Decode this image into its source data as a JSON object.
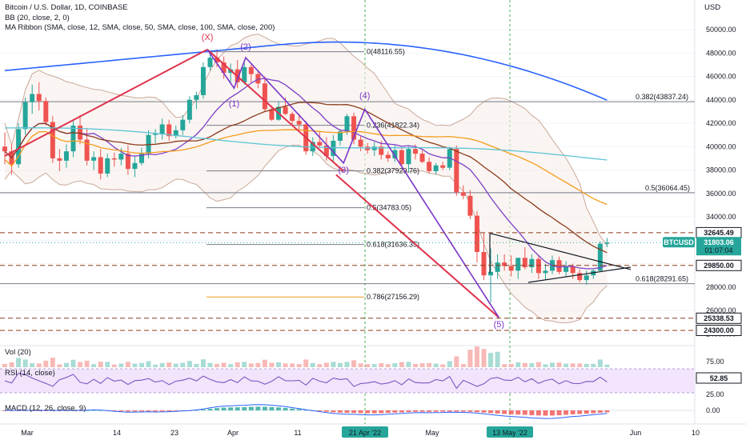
{
  "title": "Bitcoin / U.S. Dollar, 1D, COINBASE",
  "indicators": {
    "bb": "BB (20, close, 2, 0)",
    "ma_ribbon": "MA Ribbon (SMA, close, 12, SMA, close, 50, SMA, close, 100, SMA, close, 200)",
    "vol": "Vol (20)",
    "rsi": "RSI (14, close)",
    "macd": "MACD (12, 26, close, 9)"
  },
  "currency": "USD",
  "colors": {
    "up": "#26a69a",
    "down": "#ef5350",
    "bb": "#c9a99a",
    "ma12": "#7e3fc7",
    "ma50": "#8b3a1a",
    "ma100": "#f59b1b",
    "ma200_cyan": "#5ec4d6",
    "ma200": "#2962ff",
    "wave_red": "#e0334c",
    "wave_purple": "#7b35c8",
    "rsi_band": "#f1e4fb",
    "rsi_line": "#7e57c2"
  },
  "chart_data": {
    "type": "candlestick",
    "ylim": [
      23000,
      51300
    ],
    "y_ticks": [
      24000,
      26000,
      28000,
      30000,
      32000,
      34000,
      36000,
      38000,
      40000,
      42000,
      44000,
      46000,
      48000,
      50000
    ],
    "y_tick_labels": [
      "24000.00",
      "26000.00",
      "28000.00",
      "30000.00",
      "32000.00",
      "34000.00",
      "36000.00",
      "38000.00",
      "40000.00",
      "42000.00",
      "44000.00",
      "46000.00",
      "48000.00",
      "50000.00"
    ],
    "x_axis": [
      "Mar",
      "14",
      "23",
      "Apr",
      "11",
      "21 Apr '22",
      "May",
      "13 May '22",
      "Jun",
      "10"
    ],
    "highlight_dates": [
      "21 Apr '22",
      "13 May '22"
    ],
    "ohlc": [
      [
        40000,
        41200,
        38500,
        39600
      ],
      [
        39600,
        40200,
        37600,
        38500
      ],
      [
        38500,
        42000,
        38200,
        41500
      ],
      [
        41500,
        44200,
        41000,
        43800
      ],
      [
        43800,
        45300,
        42800,
        44500
      ],
      [
        44500,
        45500,
        43100,
        43900
      ],
      [
        43900,
        44200,
        41800,
        42100
      ],
      [
        42100,
        42600,
        38600,
        39000
      ],
      [
        39000,
        39800,
        37900,
        38800
      ],
      [
        38800,
        40200,
        38200,
        39600
      ],
      [
        39600,
        42300,
        39100,
        41800
      ],
      [
        41800,
        42700,
        40200,
        40600
      ],
      [
        40600,
        41600,
        38400,
        38800
      ],
      [
        38800,
        39600,
        38000,
        39100
      ],
      [
        39100,
        39800,
        37200,
        37700
      ],
      [
        37700,
        39400,
        37400,
        39000
      ],
      [
        39000,
        39500,
        38300,
        38900
      ],
      [
        38900,
        39900,
        38400,
        39400
      ],
      [
        39400,
        40100,
        37600,
        38100
      ],
      [
        38100,
        39200,
        37400,
        38600
      ],
      [
        38600,
        39900,
        38400,
        39400
      ],
      [
        39400,
        41400,
        39000,
        41000
      ],
      [
        41000,
        41500,
        40300,
        41100
      ],
      [
        41100,
        42400,
        40600,
        41900
      ],
      [
        41900,
        42300,
        40500,
        40900
      ],
      [
        40900,
        41800,
        40700,
        41400
      ],
      [
        41400,
        42700,
        41000,
        42300
      ],
      [
        42300,
        44300,
        42000,
        44000
      ],
      [
        44000,
        44700,
        43200,
        44400
      ],
      [
        44400,
        47200,
        44100,
        46800
      ],
      [
        46800,
        48100,
        46500,
        47600
      ],
      [
        47600,
        48300,
        46800,
        47200
      ],
      [
        47200,
        47700,
        45800,
        46300
      ],
      [
        46300,
        47100,
        45500,
        46600
      ],
      [
        46600,
        47400,
        45000,
        45500
      ],
      [
        45500,
        47200,
        45300,
        46800
      ],
      [
        46800,
        47000,
        45500,
        46200
      ],
      [
        46200,
        46500,
        45000,
        45400
      ],
      [
        45400,
        46000,
        43000,
        43200
      ],
      [
        43200,
        43500,
        42200,
        42300
      ],
      [
        42300,
        43900,
        42200,
        43400
      ],
      [
        43400,
        44200,
        42700,
        42800
      ],
      [
        42800,
        43000,
        41800,
        42200
      ],
      [
        42200,
        42800,
        41400,
        41900
      ],
      [
        41900,
        42200,
        39300,
        39600
      ],
      [
        39600,
        40800,
        39200,
        40400
      ],
      [
        40400,
        41300,
        40000,
        40100
      ],
      [
        40100,
        40800,
        38800,
        39200
      ],
      [
        39200,
        41000,
        38600,
        40500
      ],
      [
        40500,
        41500,
        40100,
        41300
      ],
      [
        41300,
        42800,
        41000,
        42600
      ],
      [
        42600,
        42900,
        40200,
        40600
      ],
      [
        40600,
        40900,
        39600,
        40000
      ],
      [
        40000,
        40300,
        39400,
        39700
      ],
      [
        39700,
        40400,
        39200,
        40000
      ],
      [
        40000,
        40500,
        38900,
        39300
      ],
      [
        39300,
        39600,
        38700,
        39000
      ],
      [
        39000,
        40100,
        38700,
        39700
      ],
      [
        39700,
        39900,
        38300,
        38500
      ],
      [
        38500,
        40000,
        37800,
        39800
      ],
      [
        39800,
        40200,
        38900,
        39400
      ],
      [
        39400,
        39700,
        38600,
        38700
      ],
      [
        38700,
        39100,
        37700,
        37900
      ],
      [
        37900,
        38600,
        37600,
        38400
      ],
      [
        38400,
        38700,
        38000,
        38200
      ],
      [
        38200,
        40000,
        38000,
        39800
      ],
      [
        39800,
        40100,
        35800,
        36100
      ],
      [
        36100,
        36700,
        35500,
        35800
      ],
      [
        35800,
        36300,
        33800,
        34100
      ],
      [
        34100,
        34500,
        30100,
        31000
      ],
      [
        31000,
        32600,
        28600,
        29000
      ],
      [
        29000,
        31300,
        26700,
        29300
      ],
      [
        29300,
        30800,
        28700,
        30100
      ],
      [
        30100,
        30800,
        29400,
        29800
      ],
      [
        29800,
        30700,
        28900,
        29400
      ],
      [
        29400,
        30500,
        28700,
        30500
      ],
      [
        30500,
        31400,
        29500,
        29700
      ],
      [
        29700,
        30800,
        29200,
        30400
      ],
      [
        30400,
        30700,
        28700,
        29200
      ],
      [
        29200,
        30000,
        28600,
        29400
      ],
      [
        29400,
        30700,
        29100,
        30300
      ],
      [
        30300,
        30600,
        29100,
        29300
      ],
      [
        29300,
        30200,
        28900,
        29800
      ],
      [
        29800,
        30000,
        28700,
        29200
      ],
      [
        29200,
        29500,
        28400,
        28600
      ],
      [
        28600,
        29400,
        28200,
        29000
      ],
      [
        29000,
        29500,
        28700,
        29400
      ],
      [
        29400,
        31900,
        29300,
        31700
      ],
      [
        31700,
        32200,
        31400,
        31800
      ]
    ],
    "last_price": 31803.06,
    "price_tags": [
      {
        "label": "32645.49",
        "value": 32645.49,
        "bg": "#ffffff",
        "fg": "#131722",
        "border": "#131722"
      },
      {
        "label": "BTCUSD",
        "value": 31803.06,
        "bg": "#26a69a",
        "fg": "#ffffff",
        "border": "#26a69a"
      },
      {
        "label": "29850.00",
        "value": 29850,
        "bg": "#ffffff",
        "fg": "#131722",
        "border": "#131722"
      },
      {
        "label": "25338.53",
        "value": 25338.53,
        "bg": "#ffffff",
        "fg": "#131722",
        "border": "#131722"
      },
      {
        "label": "24300.00",
        "value": 24300,
        "bg": "#ffffff",
        "fg": "#131722",
        "border": "#131722"
      }
    ],
    "countdown": "01:07:04",
    "last_price_label": "31803.06",
    "fib_levels": [
      {
        "label": "0(48116.55)",
        "value": 48116.55
      },
      {
        "label": "0.236(41822.34)",
        "value": 41822.34
      },
      {
        "label": "0.382(37929.76)",
        "value": 37929.76
      },
      {
        "label": "0.5(34783.05)",
        "value": 34783.05
      },
      {
        "label": "0.618(31636.35)",
        "value": 31636.35
      },
      {
        "label": "0.786(27156.29)",
        "value": 27156.29
      }
    ],
    "fib_levels_right": [
      {
        "label": "0.382(43837.24)",
        "value": 43837.24
      },
      {
        "label": "0.5(36064.45)",
        "value": 36064.45
      },
      {
        "label": "0.618(28291.65)",
        "value": 28291.65
      }
    ],
    "waves": [
      {
        "label": "(X)",
        "value": 48300
      },
      {
        "label": "(2)",
        "value": 47600
      },
      {
        "label": "(1)",
        "value": 45000
      },
      {
        "label": "(4)",
        "value": 43200
      },
      {
        "label": "(3)",
        "value": 38600
      },
      {
        "label": "(5)",
        "value": 25400
      }
    ],
    "rsi": {
      "value": 52.85,
      "label": "52.85",
      "y_ticks": [
        "75.00",
        "25.00"
      ]
    },
    "macd": {
      "y_ticks": [
        "0.00"
      ]
    }
  }
}
